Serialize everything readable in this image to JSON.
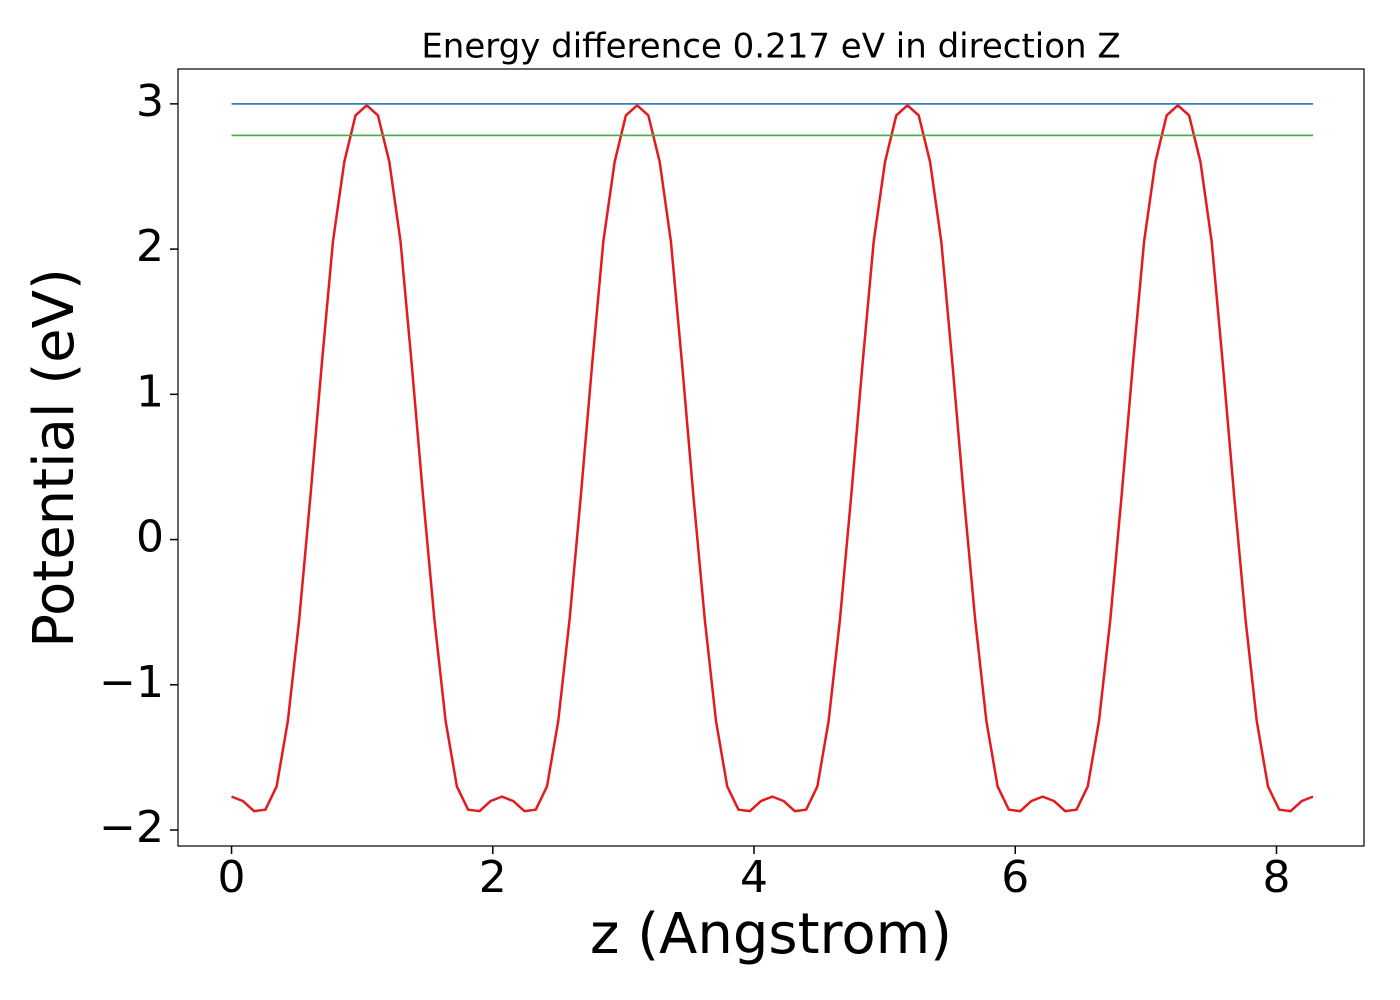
{
  "chart_data": {
    "type": "line",
    "title": "Energy difference 0.217 eV in direction Z",
    "xlabel": "z (Angstrom)",
    "ylabel": "Potential (eV)",
    "xlim": [
      -0.41,
      8.67
    ],
    "ylim": [
      -2.11,
      3.24
    ],
    "xticks": [
      0,
      2,
      4,
      6,
      8
    ],
    "yticks": [
      {
        "value": -2,
        "label": "−2"
      },
      {
        "value": -1,
        "label": "−1"
      },
      0,
      1,
      2,
      3
    ],
    "series": [
      {
        "color": "#e41a1c",
        "x": [
          0,
          0.086,
          0.173,
          0.259,
          0.345,
          0.431,
          0.518,
          0.604,
          0.69,
          0.776,
          0.863,
          0.949,
          1.035,
          1.121,
          1.208,
          1.294,
          1.38,
          1.466,
          1.553,
          1.639,
          1.725,
          1.811,
          1.898,
          1.984,
          2.07,
          2.156,
          2.243,
          2.329,
          2.415,
          2.501,
          2.588,
          2.674,
          2.76,
          2.846,
          2.933,
          3.019,
          3.105,
          3.191,
          3.278,
          3.364,
          3.45,
          3.536,
          3.623,
          3.709,
          3.795,
          3.881,
          3.968,
          4.054,
          4.14,
          4.226,
          4.313,
          4.399,
          4.485,
          4.571,
          4.658,
          4.744,
          4.83,
          4.916,
          5.003,
          5.089,
          5.175,
          5.261,
          5.348,
          5.434,
          5.52,
          5.606,
          5.693,
          5.779,
          5.865,
          5.951,
          6.038,
          6.124,
          6.21,
          6.296,
          6.383,
          6.469,
          6.555,
          6.641,
          6.728,
          6.814,
          6.9,
          6.986,
          7.073,
          7.159,
          7.245,
          7.331,
          7.418,
          7.504,
          7.59,
          7.676,
          7.763,
          7.849,
          7.935,
          8.021,
          8.108,
          8.194,
          8.28
        ],
        "values": [
          -1.77,
          -1.8,
          -1.87,
          -1.86,
          -1.7,
          -1.25,
          -0.55,
          0.3,
          1.2,
          2.05,
          2.6,
          2.92,
          2.99,
          2.92,
          2.6,
          2.05,
          1.2,
          0.3,
          -0.55,
          -1.25,
          -1.7,
          -1.86,
          -1.87,
          -1.8,
          -1.77,
          -1.8,
          -1.87,
          -1.86,
          -1.7,
          -1.25,
          -0.55,
          0.3,
          1.2,
          2.05,
          2.6,
          2.92,
          2.99,
          2.92,
          2.6,
          2.05,
          1.2,
          0.3,
          -0.55,
          -1.25,
          -1.7,
          -1.86,
          -1.87,
          -1.8,
          -1.77,
          -1.8,
          -1.87,
          -1.86,
          -1.7,
          -1.25,
          -0.55,
          0.3,
          1.2,
          2.05,
          2.6,
          2.92,
          2.99,
          2.92,
          2.6,
          2.05,
          1.2,
          0.3,
          -0.55,
          -1.25,
          -1.7,
          -1.86,
          -1.87,
          -1.8,
          -1.77,
          -1.8,
          -1.87,
          -1.86,
          -1.7,
          -1.25,
          -0.55,
          0.3,
          1.2,
          2.05,
          2.6,
          2.92,
          2.99,
          2.92,
          2.6,
          2.05,
          1.2,
          0.3,
          -0.55,
          -1.25,
          -1.7,
          -1.86,
          -1.87,
          -1.8,
          -1.77
        ]
      },
      {
        "color": "#377eb8",
        "x": [
          0,
          8.28
        ],
        "values": [
          3.0,
          3.0
        ]
      },
      {
        "color": "#4daf4a",
        "x": [
          0,
          8.28
        ],
        "values": [
          2.783,
          2.783
        ]
      }
    ]
  }
}
